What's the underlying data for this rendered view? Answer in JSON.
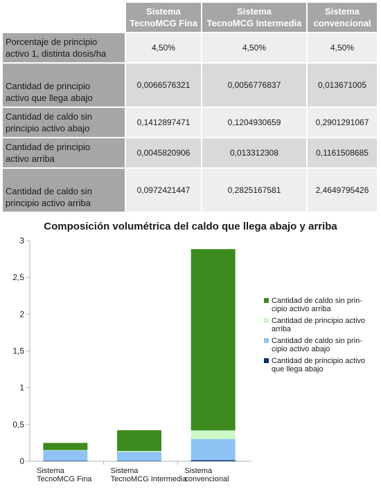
{
  "table": {
    "headers": [
      [
        "",
        ""
      ],
      [
        "Sistema",
        "TecnoMCG Fina"
      ],
      [
        "Sistema",
        "TecnoMCG Intermedia"
      ],
      [
        "Sistema",
        "convencional"
      ]
    ],
    "rows": [
      {
        "label": [
          "Porcentaje de principio",
          "activo 1, distinta dosis/ha"
        ],
        "values": [
          "4,50%",
          "4,50%",
          "4,50%"
        ]
      },
      {
        "label": [
          "Cantidad de principio",
          "activo que llega abajo"
        ],
        "values": [
          "0,0066576321",
          "0,0056776837",
          "0,013671005"
        ]
      },
      {
        "label": [
          "Cantidad de caldo sin",
          "principio activo abajo"
        ],
        "values": [
          "0,1412897471",
          "0,1204930659",
          "0,2901291067"
        ]
      },
      {
        "label": [
          "Cantidad de principio",
          "activo arriba"
        ],
        "values": [
          "0,0045820906",
          "0,013312308",
          "0,1161508685"
        ]
      },
      {
        "label": [
          "Cantidad de caldo sin",
          "principio activo arriba"
        ],
        "values": [
          "0,0972421447",
          "0,2825167581",
          "2,4649795426"
        ]
      }
    ]
  },
  "chart_data": {
    "type": "bar",
    "stacked": true,
    "title": "Composición volumétrica del caldo que llega abajo y arriba",
    "categories": [
      [
        "Sistema",
        "TecnoMCG Fina"
      ],
      [
        "Sistema",
        "TecnoMCG Intermedia"
      ],
      [
        "Sistema",
        "convencional"
      ]
    ],
    "ylim": [
      0,
      3
    ],
    "yticks": [
      0,
      0.5,
      1,
      1.5,
      2,
      2.5,
      3
    ],
    "ytick_labels": [
      "0",
      "0,5",
      "1",
      "1,5",
      "2",
      "2,5",
      "3"
    ],
    "grid": false,
    "legend_position": "right",
    "series": [
      {
        "name": [
          "Cantidad de principio activo",
          "que llega abajo"
        ],
        "color": "#0b2e6b",
        "values": [
          0.0066576321,
          0.0056776837,
          0.013671005
        ]
      },
      {
        "name": [
          "Cantidad de caldo sin prin-",
          "cipio activo abajo"
        ],
        "color": "#8fc3f5",
        "values": [
          0.1412897471,
          0.1204930659,
          0.2901291067
        ]
      },
      {
        "name": [
          "Cantidad de principio activo",
          "arriba"
        ],
        "color": "#cdf7c6",
        "values": [
          0.0045820906,
          0.013312308,
          0.1161508685
        ]
      },
      {
        "name": [
          "Cantidad de caldo sin prin-",
          "cipio activo arriba"
        ],
        "color": "#3d8b1e",
        "values": [
          0.0972421447,
          0.2825167581,
          2.4649795426
        ]
      }
    ]
  }
}
